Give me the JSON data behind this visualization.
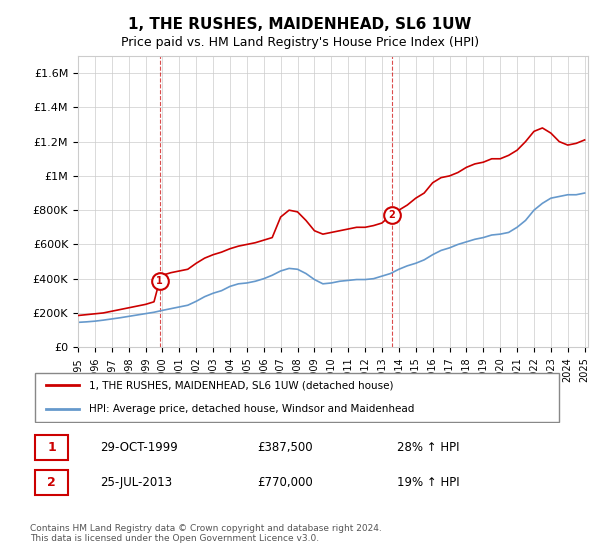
{
  "title": "1, THE RUSHES, MAIDENHEAD, SL6 1UW",
  "subtitle": "Price paid vs. HM Land Registry's House Price Index (HPI)",
  "legend_label_red": "1, THE RUSHES, MAIDENHEAD, SL6 1UW (detached house)",
  "legend_label_blue": "HPI: Average price, detached house, Windsor and Maidenhead",
  "footer": "Contains HM Land Registry data © Crown copyright and database right 2024.\nThis data is licensed under the Open Government Licence v3.0.",
  "annotation1_label": "1",
  "annotation1_date": "29-OCT-1999",
  "annotation1_price": "£387,500",
  "annotation1_hpi": "28% ↑ HPI",
  "annotation2_label": "2",
  "annotation2_date": "25-JUL-2013",
  "annotation2_price": "£770,000",
  "annotation2_hpi": "19% ↑ HPI",
  "red_color": "#cc0000",
  "blue_color": "#6699cc",
  "dashed_color": "#cc0000",
  "ylim": [
    0,
    1700000
  ],
  "yticks": [
    0,
    200000,
    400000,
    600000,
    800000,
    1000000,
    1200000,
    1400000,
    1600000
  ],
  "ytick_labels": [
    "£0",
    "£200K",
    "£400K",
    "£600K",
    "£800K",
    "£1M",
    "£1.2M",
    "£1.4M",
    "£1.6M"
  ],
  "red_x": [
    1995.0,
    1995.5,
    1996.0,
    1996.5,
    1997.0,
    1997.5,
    1998.0,
    1998.5,
    1999.0,
    1999.5,
    1999.83,
    2000.0,
    2000.5,
    2001.0,
    2001.5,
    2002.0,
    2002.5,
    2003.0,
    2003.5,
    2004.0,
    2004.5,
    2005.0,
    2005.5,
    2006.0,
    2006.5,
    2007.0,
    2007.5,
    2008.0,
    2008.5,
    2009.0,
    2009.5,
    2010.0,
    2010.5,
    2011.0,
    2011.5,
    2012.0,
    2012.5,
    2013.0,
    2013.5,
    2013.58,
    2014.0,
    2014.5,
    2015.0,
    2015.5,
    2016.0,
    2016.5,
    2017.0,
    2017.5,
    2018.0,
    2018.5,
    2019.0,
    2019.5,
    2020.0,
    2020.5,
    2021.0,
    2021.5,
    2022.0,
    2022.5,
    2023.0,
    2023.5,
    2024.0,
    2024.5,
    2025.0
  ],
  "red_y": [
    185000,
    190000,
    195000,
    200000,
    210000,
    220000,
    230000,
    240000,
    250000,
    265000,
    387500,
    420000,
    435000,
    445000,
    455000,
    490000,
    520000,
    540000,
    555000,
    575000,
    590000,
    600000,
    610000,
    625000,
    640000,
    760000,
    800000,
    790000,
    740000,
    680000,
    660000,
    670000,
    680000,
    690000,
    700000,
    700000,
    710000,
    725000,
    770000,
    770000,
    800000,
    830000,
    870000,
    900000,
    960000,
    990000,
    1000000,
    1020000,
    1050000,
    1070000,
    1080000,
    1100000,
    1100000,
    1120000,
    1150000,
    1200000,
    1260000,
    1280000,
    1250000,
    1200000,
    1180000,
    1190000,
    1210000
  ],
  "blue_x": [
    1995.0,
    1995.5,
    1996.0,
    1996.5,
    1997.0,
    1997.5,
    1998.0,
    1998.5,
    1999.0,
    1999.5,
    2000.0,
    2000.5,
    2001.0,
    2001.5,
    2002.0,
    2002.5,
    2003.0,
    2003.5,
    2004.0,
    2004.5,
    2005.0,
    2005.5,
    2006.0,
    2006.5,
    2007.0,
    2007.5,
    2008.0,
    2008.5,
    2009.0,
    2009.5,
    2010.0,
    2010.5,
    2011.0,
    2011.5,
    2012.0,
    2012.5,
    2013.0,
    2013.5,
    2014.0,
    2014.5,
    2015.0,
    2015.5,
    2016.0,
    2016.5,
    2017.0,
    2017.5,
    2018.0,
    2018.5,
    2019.0,
    2019.5,
    2020.0,
    2020.5,
    2021.0,
    2021.5,
    2022.0,
    2022.5,
    2023.0,
    2023.5,
    2024.0,
    2024.5,
    2025.0
  ],
  "blue_y": [
    145000,
    148000,
    152000,
    158000,
    165000,
    172000,
    180000,
    188000,
    196000,
    204000,
    215000,
    225000,
    235000,
    245000,
    268000,
    295000,
    315000,
    330000,
    355000,
    370000,
    375000,
    385000,
    400000,
    420000,
    445000,
    460000,
    455000,
    430000,
    395000,
    370000,
    375000,
    385000,
    390000,
    395000,
    395000,
    400000,
    415000,
    430000,
    455000,
    475000,
    490000,
    510000,
    540000,
    565000,
    580000,
    600000,
    615000,
    630000,
    640000,
    655000,
    660000,
    670000,
    700000,
    740000,
    800000,
    840000,
    870000,
    880000,
    890000,
    890000,
    900000
  ],
  "ann1_x": 1999.83,
  "ann1_y": 387500,
  "ann2_x": 2013.58,
  "ann2_y": 770000,
  "vline1_x": 1999.83,
  "vline2_x": 2013.58,
  "xmin": 1995,
  "xmax": 2025.2,
  "background_color": "#ffffff",
  "grid_color": "#cccccc"
}
